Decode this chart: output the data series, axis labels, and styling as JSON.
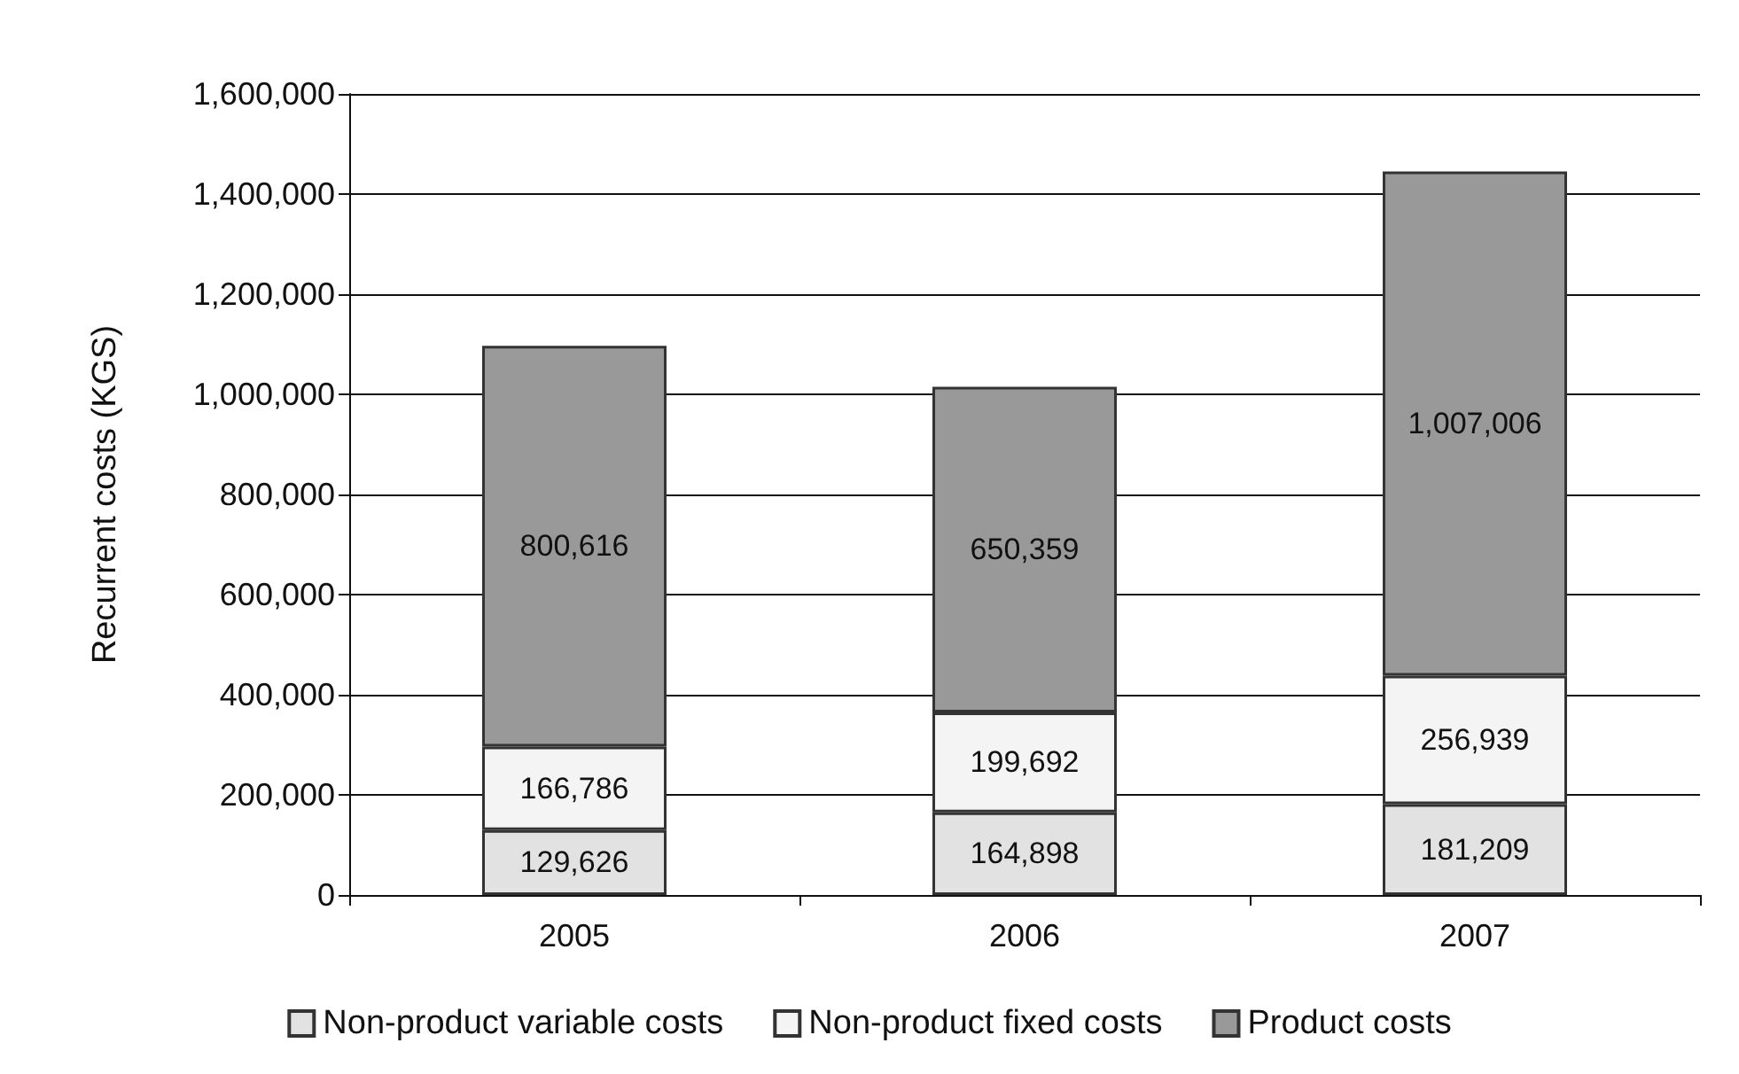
{
  "chart_data": {
    "type": "bar",
    "stacked": true,
    "ylabel": "Recurrent costs (KGS)",
    "categories": [
      "2005",
      "2006",
      "2007"
    ],
    "series": [
      {
        "name": "Non-product variable costs",
        "color": "#e2e2e2",
        "values": [
          129626,
          164898,
          181209
        ],
        "value_labels": [
          "129,626",
          "164,898",
          "181,209"
        ]
      },
      {
        "name": "Non-product fixed costs",
        "color": "#f4f4f4",
        "values": [
          166786,
          199692,
          256939
        ],
        "value_labels": [
          "166,786",
          "199,692",
          "256,939"
        ]
      },
      {
        "name": "Product costs",
        "color": "#999999",
        "values": [
          800616,
          650359,
          1007006
        ],
        "value_labels": [
          "800,616",
          "650,359",
          "1,007,006"
        ]
      }
    ],
    "ylim": [
      0,
      1600000
    ],
    "yticks": [
      0,
      {
        "value": 200000,
        "label": "200,000"
      },
      {
        "value": 400000,
        "label": "400,000"
      },
      {
        "value": 600000,
        "label": "600,000"
      },
      {
        "value": 800000,
        "label": "800,000"
      },
      {
        "value": 1000000,
        "label": "1,000,000"
      },
      {
        "value": 1200000,
        "label": "1,200,000"
      },
      {
        "value": 1400000,
        "label": "1,400,000"
      },
      {
        "value": 1600000,
        "label": "1,600,000"
      }
    ],
    "grid": "y",
    "legend": "bottom"
  }
}
